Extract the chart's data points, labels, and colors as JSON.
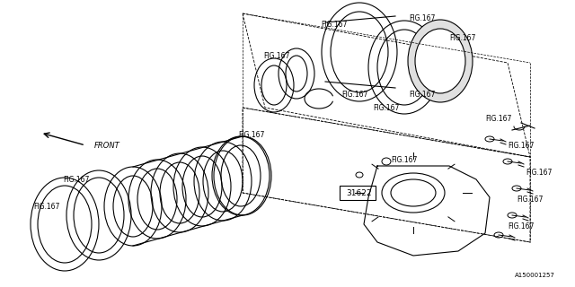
{
  "bg_color": "#ffffff",
  "line_color": "#000000",
  "line_width": 0.8,
  "title": "",
  "fig_label": "FIG.167",
  "part_31622": "31622",
  "watermark": "A150001257",
  "front_label": "FRONT"
}
